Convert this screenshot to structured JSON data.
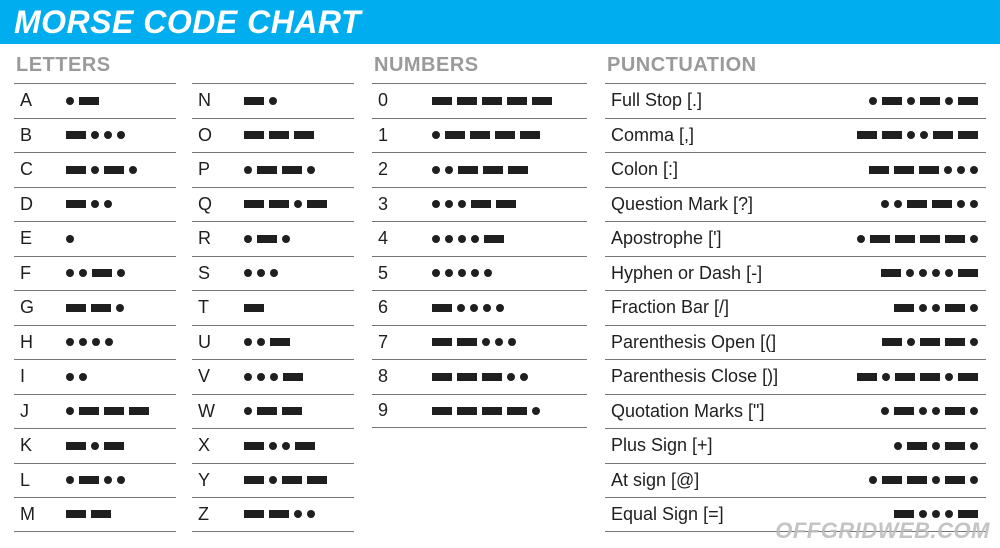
{
  "title": "MORSE CODE CHART",
  "colors": {
    "title_bg": "#00aef0",
    "title_text": "#ffffff",
    "heading_text": "#9a9a9a",
    "rule": "#767676",
    "symbol_text": "#1f1f1f",
    "morse_fill": "#1f1f1f",
    "watermark": "#bdbdbd",
    "background": "#ffffff"
  },
  "watermark": "OFFGRIDWEB.COM",
  "sections": {
    "letters": {
      "heading": "LETTERS",
      "col1": [
        {
          "sym": "A",
          "code": ".-"
        },
        {
          "sym": "B",
          "code": "-..."
        },
        {
          "sym": "C",
          "code": "-.-."
        },
        {
          "sym": "D",
          "code": "-.."
        },
        {
          "sym": "E",
          "code": "."
        },
        {
          "sym": "F",
          "code": "..-."
        },
        {
          "sym": "G",
          "code": "--."
        },
        {
          "sym": "H",
          "code": "...."
        },
        {
          "sym": "I",
          "code": ".."
        },
        {
          "sym": "J",
          "code": ".---"
        },
        {
          "sym": "K",
          "code": "-.-"
        },
        {
          "sym": "L",
          "code": ".-.."
        },
        {
          "sym": "M",
          "code": "--"
        }
      ],
      "col2": [
        {
          "sym": "N",
          "code": "-."
        },
        {
          "sym": "O",
          "code": "---"
        },
        {
          "sym": "P",
          "code": ".--."
        },
        {
          "sym": "Q",
          "code": "--.-"
        },
        {
          "sym": "R",
          "code": ".-."
        },
        {
          "sym": "S",
          "code": "..."
        },
        {
          "sym": "T",
          "code": "-"
        },
        {
          "sym": "U",
          "code": "..-"
        },
        {
          "sym": "V",
          "code": "...-"
        },
        {
          "sym": "W",
          "code": ".--"
        },
        {
          "sym": "X",
          "code": "-..-"
        },
        {
          "sym": "Y",
          "code": "-.--"
        },
        {
          "sym": "Z",
          "code": "--.."
        }
      ]
    },
    "numbers": {
      "heading": "NUMBERS",
      "items": [
        {
          "sym": "0",
          "code": "-----"
        },
        {
          "sym": "1",
          "code": ".----"
        },
        {
          "sym": "2",
          "code": "..---"
        },
        {
          "sym": "3",
          "code": "...--"
        },
        {
          "sym": "4",
          "code": "....-"
        },
        {
          "sym": "5",
          "code": "....."
        },
        {
          "sym": "6",
          "code": "-...."
        },
        {
          "sym": "7",
          "code": "--..."
        },
        {
          "sym": "8",
          "code": "---.."
        },
        {
          "sym": "9",
          "code": "----."
        }
      ]
    },
    "punctuation": {
      "heading": "PUNCTUATION",
      "items": [
        {
          "name": "Full Stop [.]",
          "code": ".-.-.-"
        },
        {
          "name": "Comma [,]",
          "code": "--..--"
        },
        {
          "name": "Colon [:]",
          "code": "---..."
        },
        {
          "name": "Question Mark [?]",
          "code": "..--.."
        },
        {
          "name": "Apostrophe [']",
          "code": ".----."
        },
        {
          "name": "Hyphen or Dash [-]",
          "code": "-....-"
        },
        {
          "name": "Fraction Bar [/]",
          "code": "-..-."
        },
        {
          "name": "Parenthesis Open [(]",
          "code": "-.--."
        },
        {
          "name": "Parenthesis Close [)]",
          "code": "-.--.-"
        },
        {
          "name": "Quotation Marks [\"]",
          "code": ".-..-."
        },
        {
          "name": "Plus Sign [+]",
          "code": ".-.-."
        },
        {
          "name": "At sign [@]",
          "code": ".--.-."
        },
        {
          "name": "Equal Sign [=]",
          "code": "-...-"
        }
      ]
    }
  }
}
